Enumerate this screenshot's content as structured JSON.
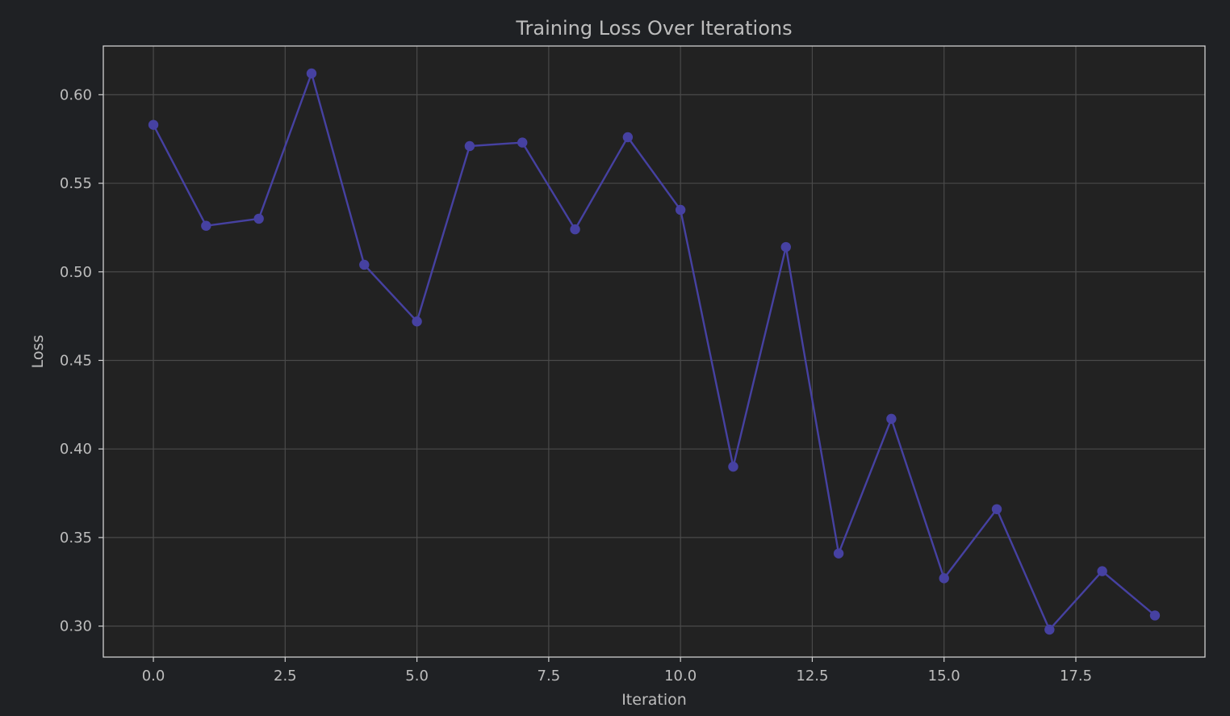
{
  "theme": {
    "figure_bg": "#1f2124",
    "plot_bg": "#222222",
    "grid_color": "#4a4a4a",
    "spine_color": "#cfcfcf",
    "text_color": "#bdbdbd",
    "series_color": "#4641a1"
  },
  "chart_data": {
    "type": "line",
    "title": "Training Loss Over Iterations",
    "xlabel": "Iteration",
    "ylabel": "Loss",
    "xlim": [
      -0.95,
      19.95
    ],
    "ylim": [
      0.2825,
      0.6275
    ],
    "x_ticks": [
      0.0,
      2.5,
      5.0,
      7.5,
      10.0,
      12.5,
      15.0,
      17.5
    ],
    "x_tick_labels": [
      "0.0",
      "2.5",
      "5.0",
      "7.5",
      "10.0",
      "12.5",
      "15.0",
      "17.5"
    ],
    "y_ticks": [
      0.3,
      0.35,
      0.4,
      0.45,
      0.5,
      0.55,
      0.6
    ],
    "y_tick_labels": [
      "0.30",
      "0.35",
      "0.40",
      "0.45",
      "0.50",
      "0.55",
      "0.60"
    ],
    "grid": true,
    "markers": "circle",
    "series": [
      {
        "x": [
          0,
          1,
          2,
          3,
          4,
          5,
          6,
          7,
          8,
          9,
          10,
          11,
          12,
          13,
          14,
          15,
          16,
          17,
          18,
          19
        ],
        "values": [
          0.583,
          0.526,
          0.53,
          0.612,
          0.504,
          0.472,
          0.571,
          0.573,
          0.524,
          0.576,
          0.535,
          0.39,
          0.514,
          0.341,
          0.417,
          0.327,
          0.366,
          0.298,
          0.331,
          0.306
        ]
      }
    ]
  }
}
